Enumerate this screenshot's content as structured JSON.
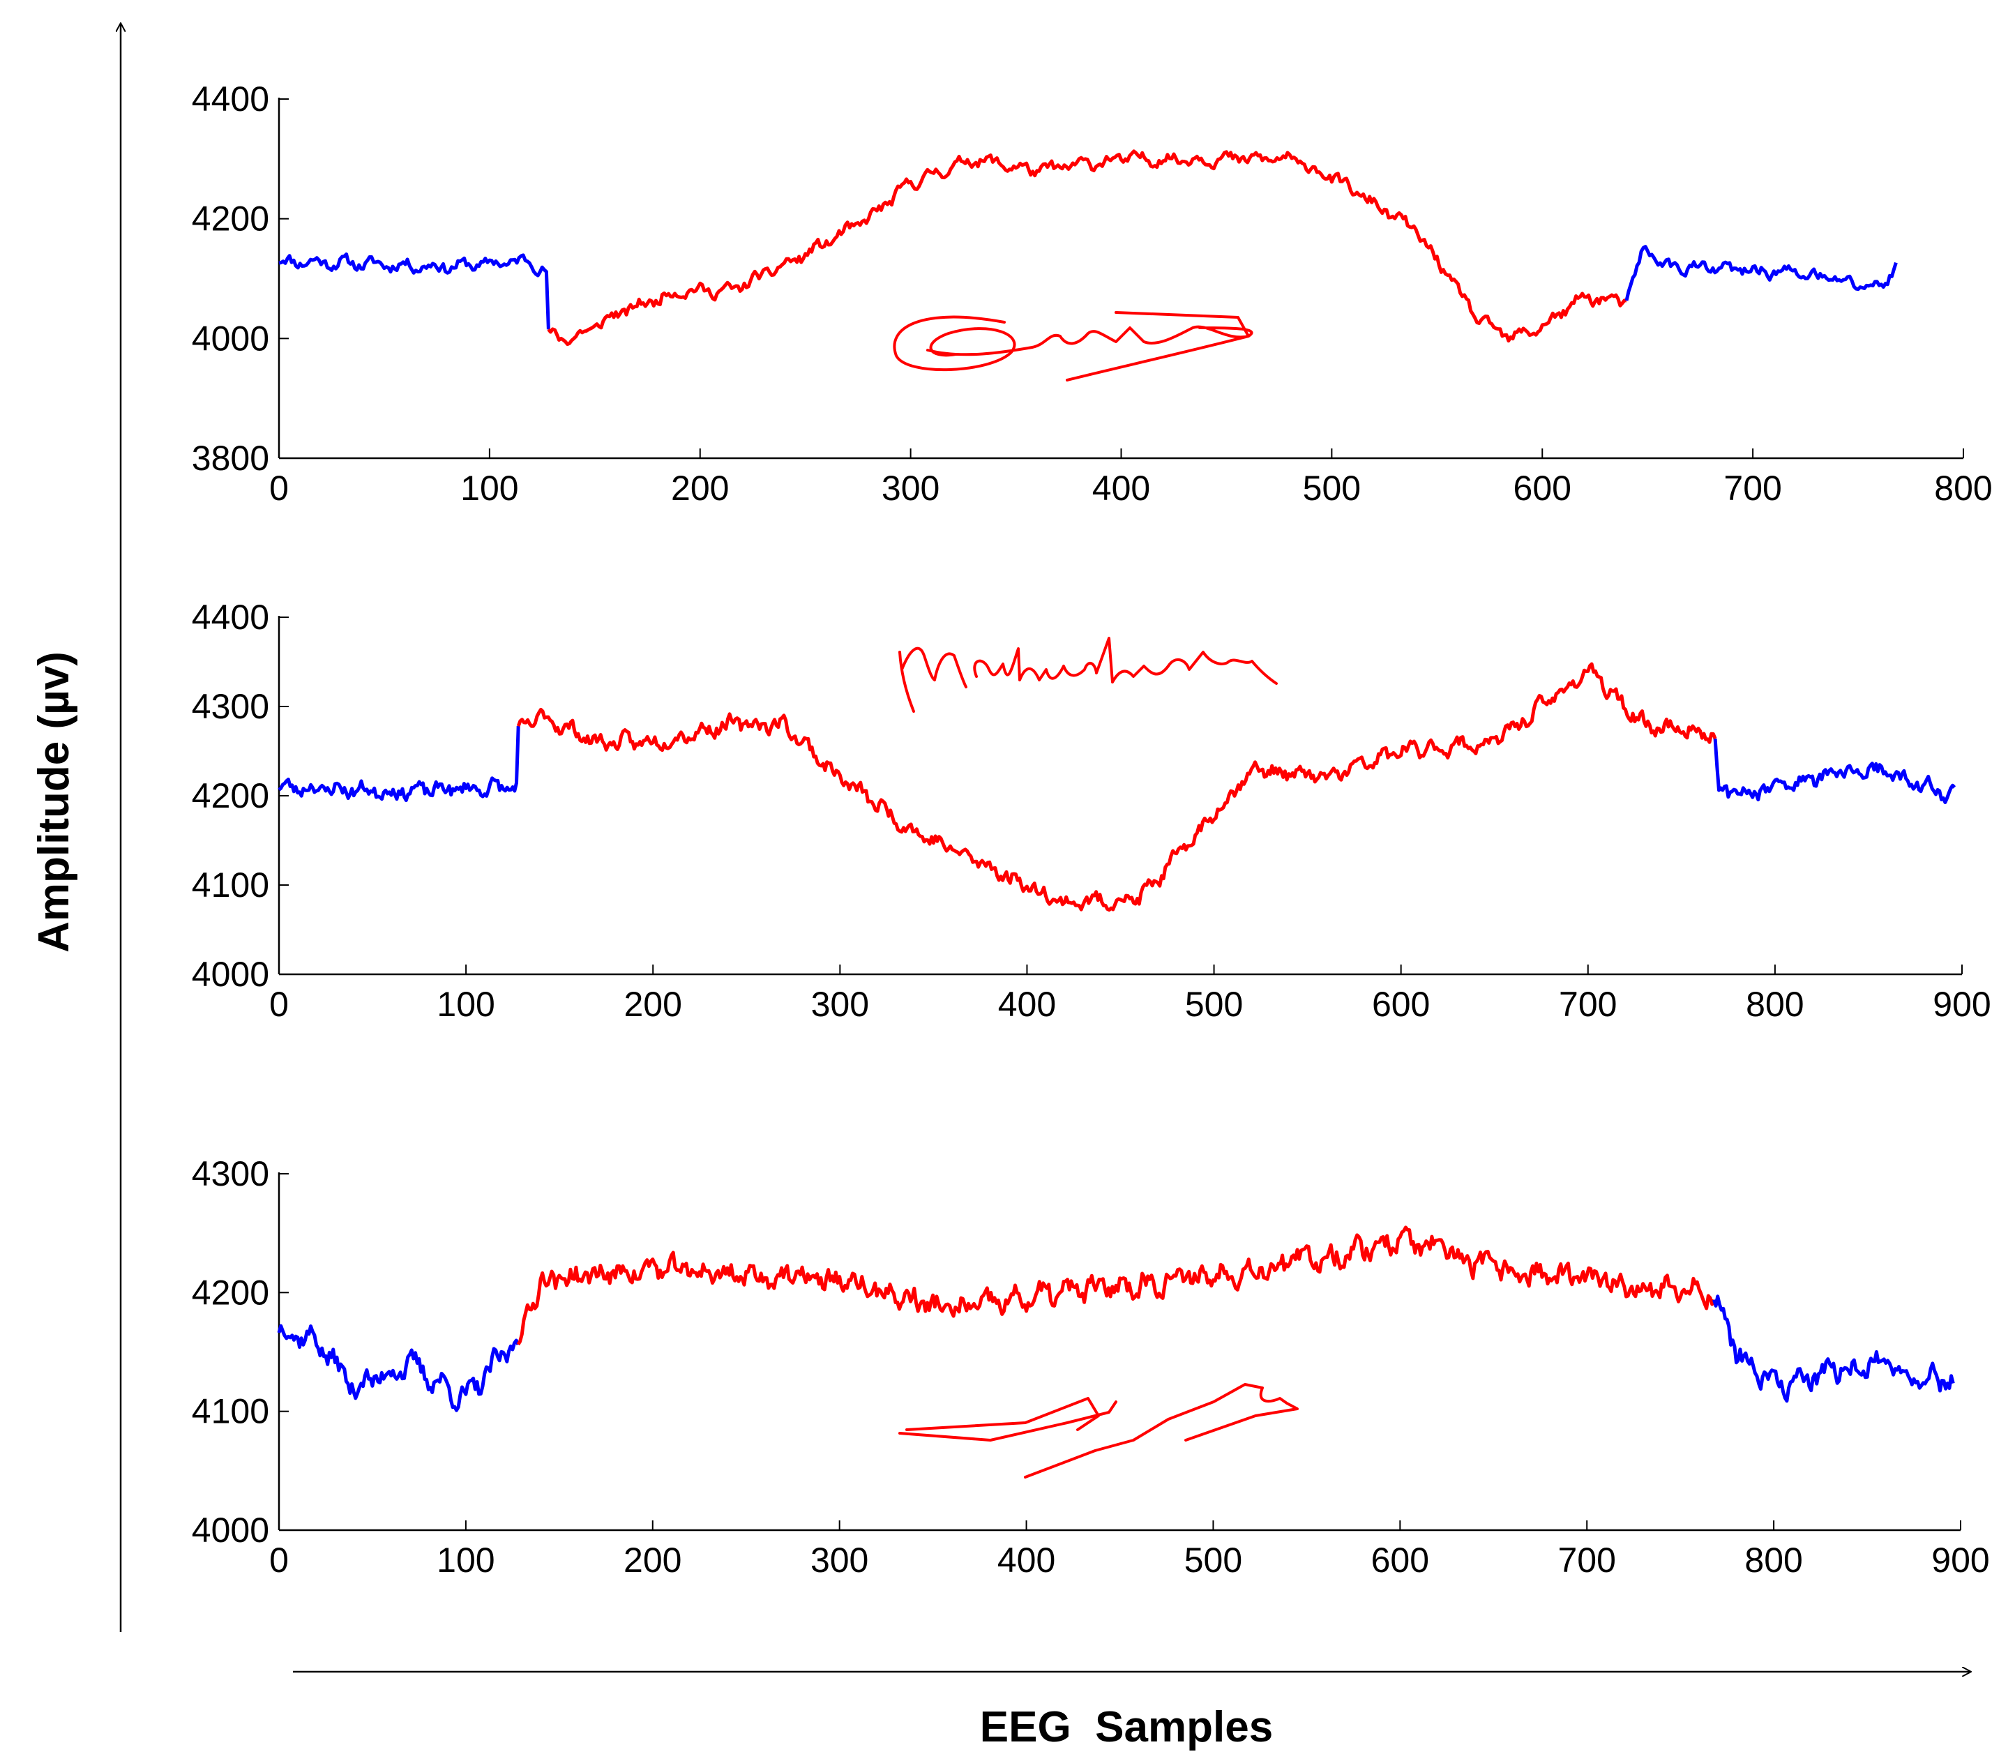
{
  "figure": {
    "ylabel": "Amplitude (µv)",
    "xlabel": "EEG  Samples"
  },
  "colors": {
    "baseline": "#0000ff",
    "signature": "#ff0000",
    "axis": "#000000"
  },
  "chart_data": [
    {
      "type": "line",
      "name_signature_image": "Gautam",
      "xlim": [
        0,
        800
      ],
      "ylim": [
        3800,
        4400
      ],
      "xticks": [
        0,
        100,
        200,
        300,
        400,
        500,
        600,
        700,
        800
      ],
      "yticks": [
        3800,
        4000,
        4200,
        4400
      ],
      "x_end": 768,
      "segment_boundaries": [
        128,
        640
      ],
      "grid": false,
      "noise": 14,
      "seed": 11,
      "anchors": [
        [
          0,
          4130
        ],
        [
          40,
          4125
        ],
        [
          80,
          4120
        ],
        [
          120,
          4130
        ],
        [
          127,
          4110
        ],
        [
          128,
          4005
        ],
        [
          140,
          4000
        ],
        [
          160,
          4040
        ],
        [
          190,
          4080
        ],
        [
          215,
          4080
        ],
        [
          250,
          4140
        ],
        [
          280,
          4200
        ],
        [
          300,
          4260
        ],
        [
          330,
          4300
        ],
        [
          360,
          4280
        ],
        [
          400,
          4300
        ],
        [
          430,
          4300
        ],
        [
          480,
          4300
        ],
        [
          500,
          4270
        ],
        [
          540,
          4180
        ],
        [
          570,
          4030
        ],
        [
          585,
          4000
        ],
        [
          600,
          4020
        ],
        [
          620,
          4070
        ],
        [
          640,
          4060
        ],
        [
          648,
          4150
        ],
        [
          660,
          4120
        ],
        [
          720,
          4110
        ],
        [
          760,
          4085
        ],
        [
          768,
          4120
        ]
      ]
    },
    {
      "type": "line",
      "name_signature_image": "Mahendra",
      "xlim": [
        0,
        900
      ],
      "ylim": [
        4000,
        4400
      ],
      "xticks": [
        0,
        100,
        200,
        300,
        400,
        500,
        600,
        700,
        800,
        900
      ],
      "yticks": [
        4000,
        4100,
        4200,
        4300,
        4400
      ],
      "x_end": 896,
      "segment_boundaries": [
        128,
        768
      ],
      "grid": false,
      "noise": 12,
      "seed": 23,
      "anchors": [
        [
          0,
          4210
        ],
        [
          60,
          4205
        ],
        [
          127,
          4210
        ],
        [
          128,
          4270
        ],
        [
          140,
          4290
        ],
        [
          170,
          4260
        ],
        [
          200,
          4260
        ],
        [
          240,
          4280
        ],
        [
          270,
          4280
        ],
        [
          300,
          4220
        ],
        [
          340,
          4160
        ],
        [
          380,
          4120
        ],
        [
          420,
          4080
        ],
        [
          460,
          4085
        ],
        [
          480,
          4130
        ],
        [
          520,
          4230
        ],
        [
          560,
          4220
        ],
        [
          600,
          4250
        ],
        [
          650,
          4260
        ],
        [
          700,
          4340
        ],
        [
          730,
          4280
        ],
        [
          768,
          4270
        ],
        [
          770,
          4200
        ],
        [
          800,
          4210
        ],
        [
          850,
          4230
        ],
        [
          896,
          4200
        ]
      ]
    },
    {
      "type": "line",
      "name_signature_image": "Vishal",
      "xlim": [
        0,
        900
      ],
      "ylim": [
        4000,
        4300
      ],
      "xticks": [
        0,
        100,
        200,
        300,
        400,
        500,
        600,
        700,
        800,
        900
      ],
      "yticks": [
        4000,
        4100,
        4200,
        4300
      ],
      "x_end": 896,
      "segment_boundaries": [
        128,
        768
      ],
      "grid": false,
      "noise": 14,
      "seed": 37,
      "anchors": [
        [
          0,
          4170
        ],
        [
          20,
          4160
        ],
        [
          40,
          4120
        ],
        [
          70,
          4140
        ],
        [
          100,
          4110
        ],
        [
          127,
          4160
        ],
        [
          128,
          4160
        ],
        [
          140,
          4210
        ],
        [
          200,
          4220
        ],
        [
          300,
          4210
        ],
        [
          360,
          4185
        ],
        [
          420,
          4200
        ],
        [
          500,
          4215
        ],
        [
          560,
          4230
        ],
        [
          600,
          4245
        ],
        [
          650,
          4220
        ],
        [
          700,
          4210
        ],
        [
          768,
          4200
        ],
        [
          780,
          4150
        ],
        [
          800,
          4120
        ],
        [
          850,
          4140
        ],
        [
          896,
          4125
        ]
      ]
    }
  ]
}
